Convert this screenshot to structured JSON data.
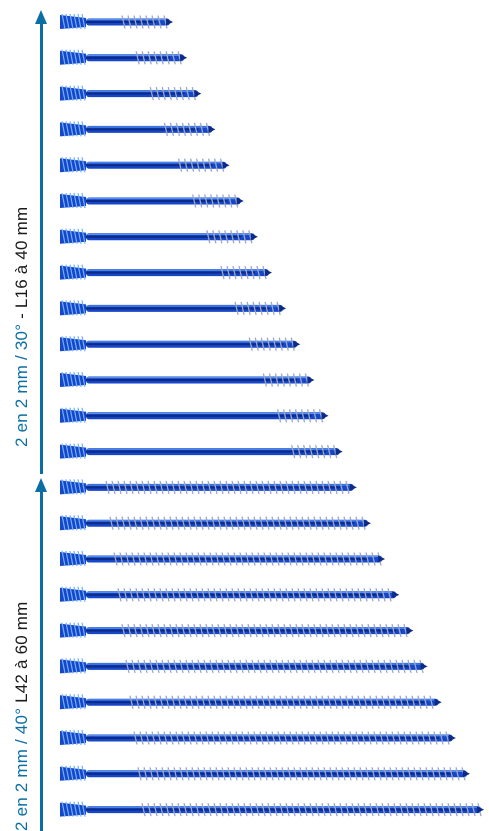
{
  "axes": {
    "upper": {
      "label_blue": "2 en 2 mm / 30°",
      "label_dark": " - L16 à 40 mm"
    },
    "lower": {
      "label_blue": "2 en 2 mm / 40°",
      "label_dark": " L42 à 60 mm"
    }
  },
  "screws": {
    "upper_lengths_mm": [
      16,
      18,
      20,
      22,
      24,
      26,
      28,
      30,
      32,
      34,
      36,
      38,
      40
    ],
    "lower_lengths_mm": [
      42,
      44,
      46,
      48,
      50,
      52,
      54,
      56,
      58,
      60
    ],
    "colors": {
      "shaft": "#1747c9",
      "shaft_dark": "#0d2a86",
      "highlight": "#6fb0ff",
      "axis": "#0b6fa4"
    }
  }
}
